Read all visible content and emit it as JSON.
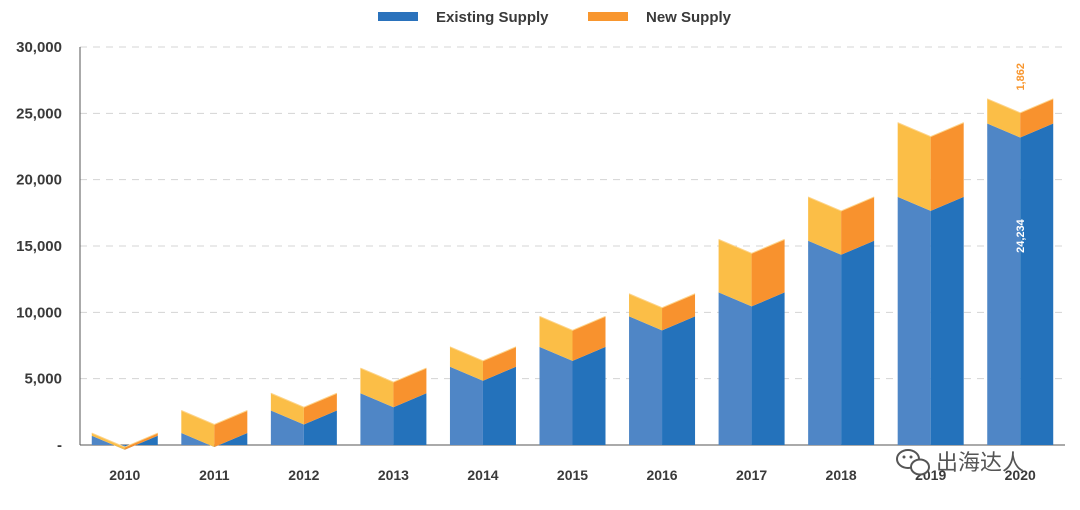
{
  "chart_data": {
    "type": "bar",
    "stacked": true,
    "categories": [
      "2010",
      "2011",
      "2012",
      "2013",
      "2014",
      "2015",
      "2016",
      "2017",
      "2018",
      "2019",
      "2020"
    ],
    "series": [
      {
        "name": "Existing Supply",
        "color": "#2a72bc",
        "values": [
          700,
          900,
          2600,
          3900,
          5900,
          7400,
          9700,
          11500,
          15400,
          18700,
          24234
        ]
      },
      {
        "name": "New Supply",
        "color": "#f8962e",
        "values": [
          200,
          1700,
          1300,
          1900,
          1500,
          2300,
          1700,
          4000,
          3300,
          5600,
          1862
        ]
      }
    ],
    "ylim": [
      0,
      30000
    ],
    "yticks": [
      0,
      5000,
      10000,
      15000,
      20000,
      25000,
      30000
    ],
    "ytick_labels": [
      "-",
      "5,000",
      "10,000",
      "15,000",
      "20,000",
      "25,000",
      "30,000"
    ],
    "data_labels": [
      {
        "category": "2020",
        "series": "New Supply",
        "text": "1,862",
        "color": "#f8962e"
      },
      {
        "category": "2020",
        "series": "Existing Supply",
        "text": "24,234",
        "color": "#ffffff"
      }
    ],
    "grid": true,
    "legend": "top-center",
    "watermark": "出海达人"
  }
}
